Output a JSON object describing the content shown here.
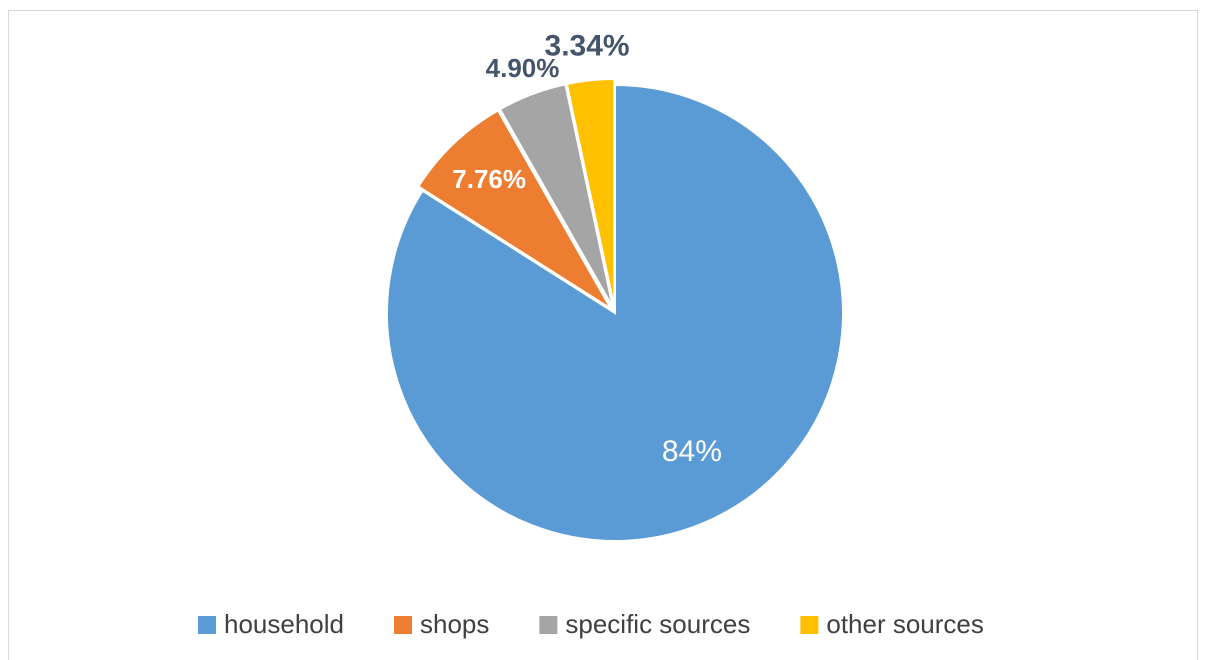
{
  "chart_data": {
    "type": "pie",
    "categories": [
      "household",
      "shops",
      "specific sources",
      "other sources"
    ],
    "values": [
      84,
      7.76,
      4.9,
      3.34
    ],
    "value_labels": [
      "84%",
      "7.76%",
      "4.90%",
      "3.34%"
    ],
    "colors": [
      "#5b9bd5",
      "#ed7d31",
      "#a5a5a5",
      "#ffc000"
    ],
    "legend": "bottom"
  }
}
